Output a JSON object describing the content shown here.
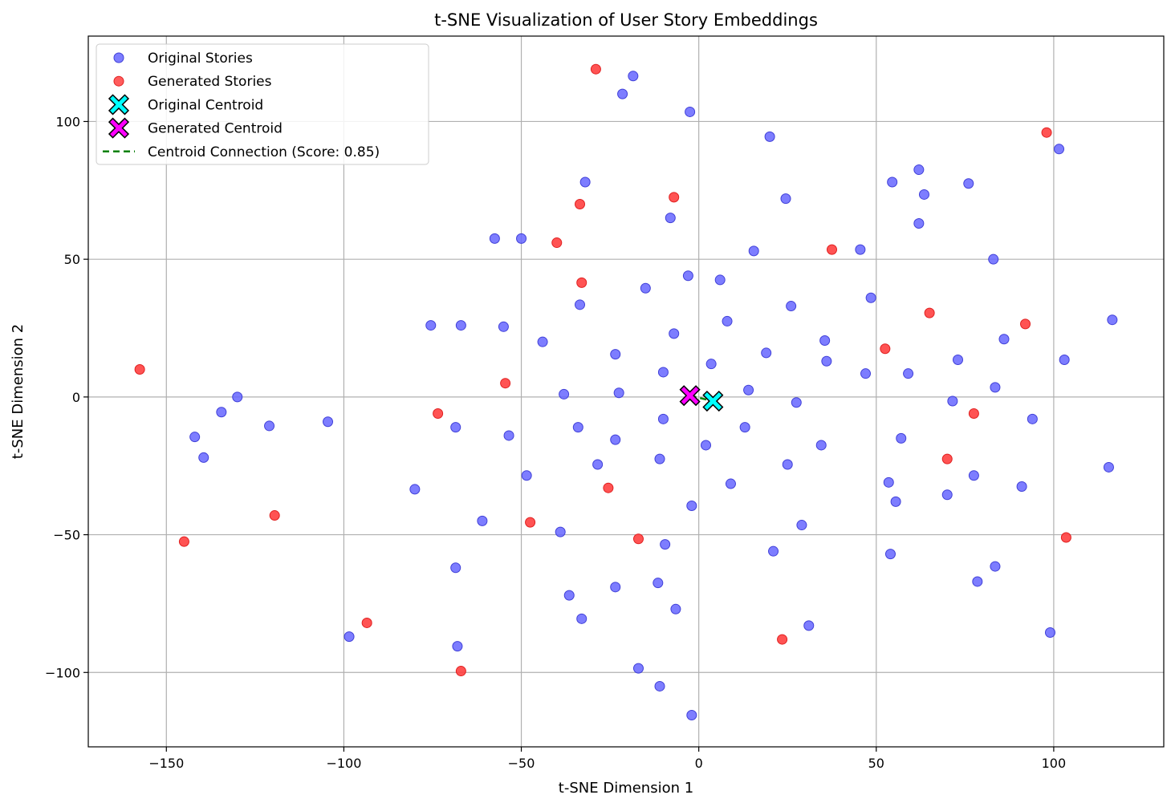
{
  "chart_data": {
    "type": "scatter",
    "title": "t-SNE Visualization of User Story Embeddings",
    "xlabel": "t-SNE Dimension 1",
    "ylabel": "t-SNE Dimension 2",
    "xlim": [
      -172,
      131
    ],
    "ylim": [
      -127,
      131
    ],
    "xticks": [
      -150,
      -100,
      -50,
      0,
      50,
      100
    ],
    "yticks": [
      -100,
      -50,
      0,
      50,
      100
    ],
    "grid": true,
    "legend_position": "top-left",
    "colors": {
      "original": "#6666ff",
      "generated": "#ff4040",
      "original_centroid": "#00ffff",
      "generated_centroid": "#ff00ff",
      "connection": "#008000"
    },
    "series": [
      {
        "name": "Original Stories",
        "points": [
          [
            -130,
            0
          ],
          [
            -134.5,
            -5.5
          ],
          [
            -142,
            -14.5
          ],
          [
            -139.5,
            -22
          ],
          [
            -121,
            -10.5
          ],
          [
            -104.5,
            -9
          ],
          [
            -98.5,
            -87
          ],
          [
            -80,
            -33.5
          ],
          [
            -75.5,
            26
          ],
          [
            -67,
            26
          ],
          [
            -68.5,
            -11
          ],
          [
            -68.5,
            -62
          ],
          [
            -68,
            -90.5
          ],
          [
            -61,
            -45
          ],
          [
            -57.5,
            57.5
          ],
          [
            -55,
            25.5
          ],
          [
            -53.5,
            -14
          ],
          [
            -50,
            57.5
          ],
          [
            -48.5,
            -28.5
          ],
          [
            -44,
            20
          ],
          [
            -39,
            -49
          ],
          [
            -38,
            1
          ],
          [
            -36.5,
            -72
          ],
          [
            -34,
            -11
          ],
          [
            -33.5,
            33.5
          ],
          [
            -33,
            -80.5
          ],
          [
            -32,
            78
          ],
          [
            -28.5,
            -24.5
          ],
          [
            -23.5,
            15.5
          ],
          [
            -23.5,
            -15.5
          ],
          [
            -23.5,
            -69
          ],
          [
            -22.5,
            1.5
          ],
          [
            -21.5,
            110
          ],
          [
            -18.5,
            116.5
          ],
          [
            -17,
            -98.5
          ],
          [
            -15,
            39.5
          ],
          [
            -11.5,
            -67.5
          ],
          [
            -11,
            -22.5
          ],
          [
            -11,
            -105
          ],
          [
            -10,
            9
          ],
          [
            -10,
            -8
          ],
          [
            -9.5,
            -53.5
          ],
          [
            -8,
            65
          ],
          [
            -7,
            23
          ],
          [
            -6.5,
            -77
          ],
          [
            -3,
            44
          ],
          [
            -2.5,
            103.5
          ],
          [
            -2,
            -39.5
          ],
          [
            -2,
            -115.5
          ],
          [
            2,
            -17.5
          ],
          [
            3.5,
            12
          ],
          [
            6,
            42.5
          ],
          [
            8,
            27.5
          ],
          [
            9,
            -31.5
          ],
          [
            13,
            -11
          ],
          [
            14,
            2.5
          ],
          [
            15.5,
            53
          ],
          [
            19,
            16
          ],
          [
            20,
            94.5
          ],
          [
            21,
            -56
          ],
          [
            24.5,
            72
          ],
          [
            25,
            -24.5
          ],
          [
            26,
            33
          ],
          [
            27.5,
            -2
          ],
          [
            29,
            -46.5
          ],
          [
            31,
            -83
          ],
          [
            34.5,
            -17.5
          ],
          [
            35.5,
            20.5
          ],
          [
            36,
            13
          ],
          [
            45.5,
            53.5
          ],
          [
            47,
            8.5
          ],
          [
            48.5,
            36
          ],
          [
            53.5,
            -31
          ],
          [
            54,
            -57
          ],
          [
            54.5,
            78
          ],
          [
            55.5,
            -38
          ],
          [
            57,
            -15
          ],
          [
            59,
            8.5
          ],
          [
            62,
            63
          ],
          [
            62,
            82.5
          ],
          [
            63.5,
            73.5
          ],
          [
            70,
            -35.5
          ],
          [
            71.5,
            -1.5
          ],
          [
            73,
            13.5
          ],
          [
            76,
            77.5
          ],
          [
            77.5,
            -28.5
          ],
          [
            78.5,
            -67
          ],
          [
            83,
            50
          ],
          [
            83.5,
            3.5
          ],
          [
            83.5,
            -61.5
          ],
          [
            86,
            21
          ],
          [
            91,
            -32.5
          ],
          [
            94,
            -8
          ],
          [
            99,
            -85.5
          ],
          [
            101.5,
            90
          ],
          [
            103,
            13.5
          ],
          [
            115.5,
            -25.5
          ],
          [
            116.5,
            28
          ]
        ]
      },
      {
        "name": "Generated Stories",
        "points": [
          [
            -157.5,
            10
          ],
          [
            -145,
            -52.5
          ],
          [
            -119.5,
            -43
          ],
          [
            -93.5,
            -82
          ],
          [
            -73.5,
            -6
          ],
          [
            -67,
            -99.5
          ],
          [
            -54.5,
            5
          ],
          [
            -47.5,
            -45.5
          ],
          [
            -40,
            56
          ],
          [
            -33.5,
            70
          ],
          [
            -33,
            41.5
          ],
          [
            -29,
            119
          ],
          [
            -25.5,
            -33
          ],
          [
            -17,
            -51.5
          ],
          [
            -7,
            72.5
          ],
          [
            23.5,
            -88
          ],
          [
            37.5,
            53.5
          ],
          [
            52.5,
            17.5
          ],
          [
            65,
            30.5
          ],
          [
            70,
            -22.5
          ],
          [
            77.5,
            -6
          ],
          [
            92,
            26.5
          ],
          [
            98,
            96
          ],
          [
            103.5,
            -51
          ]
        ]
      },
      {
        "name": "Original Centroid",
        "points": [
          [
            4,
            -1.5
          ]
        ]
      },
      {
        "name": "Generated Centroid",
        "points": [
          [
            -2.5,
            0.5
          ]
        ]
      },
      {
        "name": "Centroid Connection (Score: 0.85)",
        "points": [
          [
            -2.5,
            0.5
          ],
          [
            4,
            -1.5
          ]
        ]
      }
    ]
  }
}
